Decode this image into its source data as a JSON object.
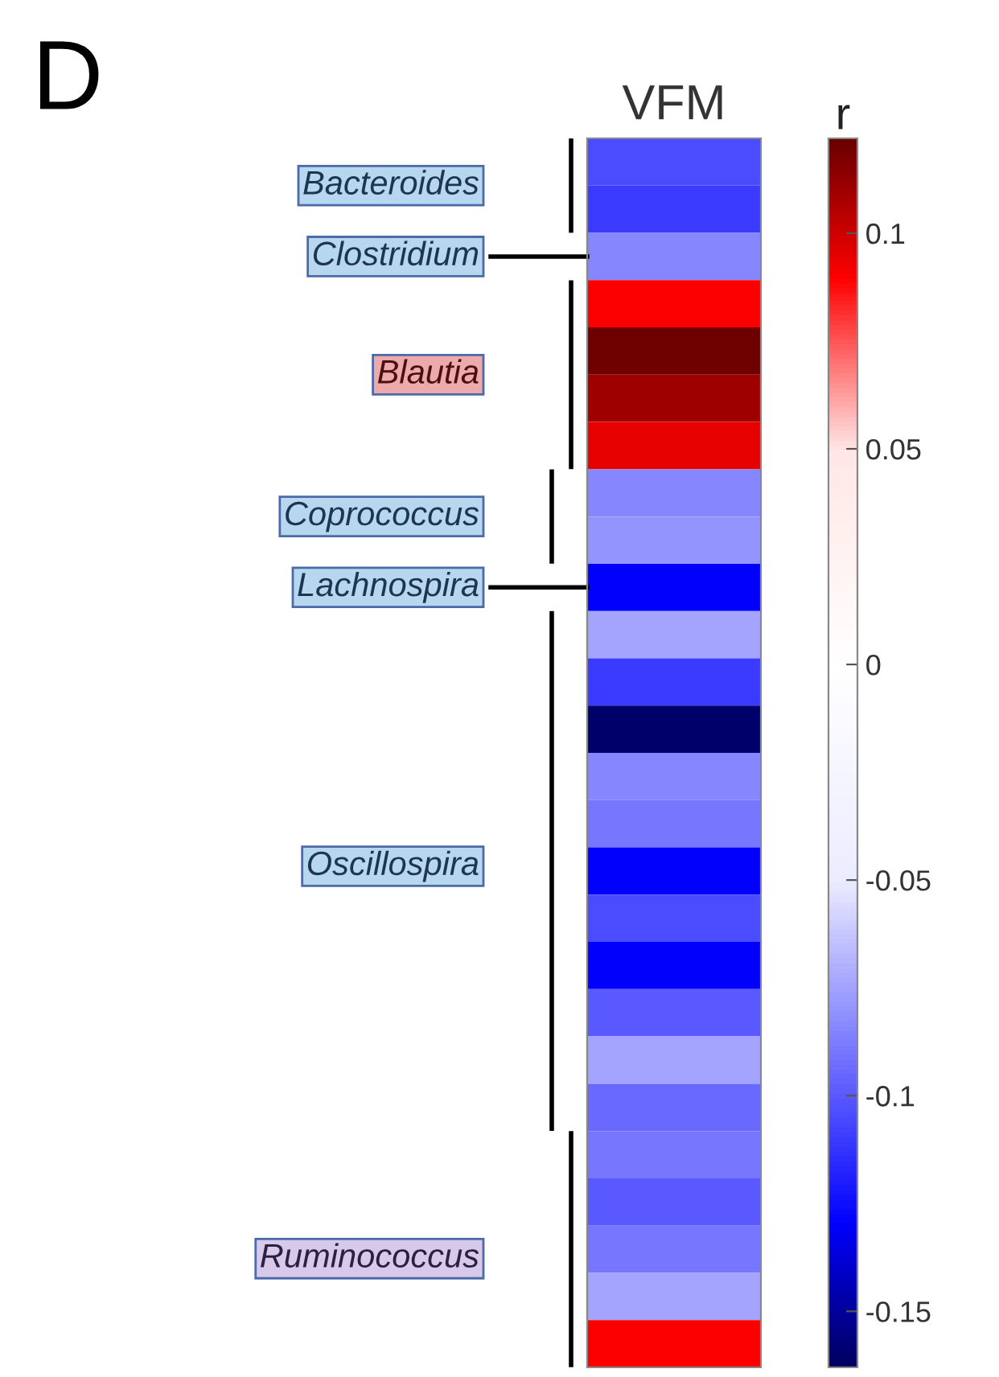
{
  "chart_data": {
    "type": "heatmap",
    "categories": [
      "VFM"
    ],
    "cells": [
      [
        -0.105
      ],
      [
        -0.11
      ],
      [
        -0.085
      ],
      [
        0.09
      ],
      [
        0.12
      ],
      [
        0.11
      ],
      [
        0.095
      ],
      [
        -0.085
      ],
      [
        -0.08
      ],
      [
        -0.13
      ],
      [
        -0.075
      ],
      [
        -0.11
      ],
      [
        -0.16
      ],
      [
        -0.085
      ],
      [
        -0.09
      ],
      [
        -0.13
      ],
      [
        -0.105
      ],
      [
        -0.13
      ],
      [
        -0.1
      ],
      [
        -0.075
      ],
      [
        -0.095
      ],
      [
        -0.09
      ],
      [
        -0.1
      ],
      [
        -0.09
      ],
      [
        -0.075
      ],
      [
        0.09
      ]
    ],
    "y_categories": [
      null,
      null,
      null,
      null,
      null,
      null,
      null,
      null,
      null,
      null,
      null,
      null,
      null,
      null,
      null,
      null,
      null,
      null,
      null,
      null,
      null,
      null,
      null,
      null,
      null,
      null
    ],
    "clim": [
      -0.163,
      0.122
    ],
    "cticks": [
      -0.15,
      -0.1,
      -0.05,
      0,
      0.05,
      0.1
    ],
    "clabel": "r",
    "annotations": [
      "D",
      "Bacteroides",
      "Clostridium",
      "Blautia",
      "Coprococcus",
      "Lachnospira",
      "Oscillospira",
      "Ruminococcus"
    ]
  }
}
